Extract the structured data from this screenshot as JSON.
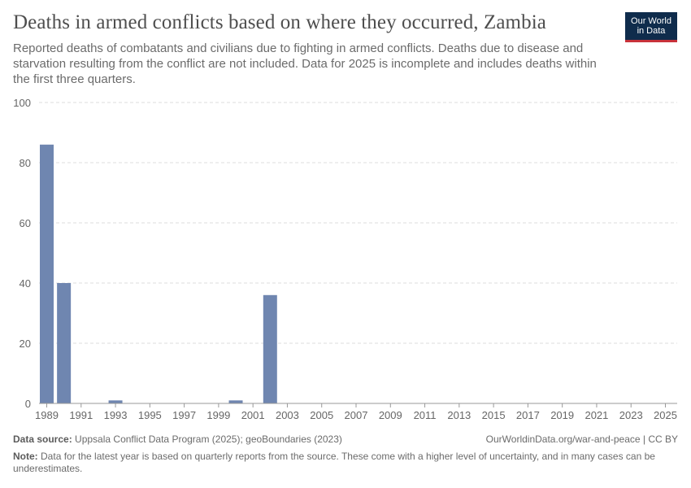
{
  "header": {
    "title": "Deaths in armed conflicts based on where they occurred, Zambia",
    "subtitle": "Reported deaths of combatants and civilians due to fighting in armed conflicts. Deaths due to disease and starvation resulting from the conflict are not included. Data for 2025 is incomplete and includes deaths within the first three quarters."
  },
  "logo": {
    "line1": "Our World",
    "line2": "in Data"
  },
  "colors": {
    "bar": "#6f86b0",
    "grid": "#dddddd",
    "axis": "#999999",
    "text": "#5b5b5b"
  },
  "chart_data": {
    "type": "bar",
    "title": "Deaths in armed conflicts based on where they occurred, Zambia",
    "xlabel": "",
    "ylabel": "",
    "ylim": [
      0,
      100
    ],
    "yticks": [
      0,
      20,
      40,
      60,
      80,
      100
    ],
    "xticks": [
      1989,
      1991,
      1993,
      1995,
      1997,
      1999,
      2001,
      2003,
      2005,
      2007,
      2009,
      2011,
      2013,
      2015,
      2017,
      2019,
      2021,
      2023,
      2025
    ],
    "grid": true,
    "categories": [
      1989,
      1990,
      1991,
      1992,
      1993,
      1994,
      1995,
      1996,
      1997,
      1998,
      1999,
      2000,
      2001,
      2002,
      2003,
      2004,
      2005,
      2006,
      2007,
      2008,
      2009,
      2010,
      2011,
      2012,
      2013,
      2014,
      2015,
      2016,
      2017,
      2018,
      2019,
      2020,
      2021,
      2022,
      2023,
      2024,
      2025
    ],
    "values": [
      86,
      40,
      0,
      0,
      1,
      0,
      0,
      0,
      0,
      0,
      0,
      1,
      0,
      36,
      0,
      0,
      0,
      0,
      0,
      0,
      0,
      0,
      0,
      0,
      0,
      0,
      0,
      0,
      0,
      0,
      0,
      0,
      0,
      0,
      0,
      0,
      0
    ]
  },
  "footer": {
    "source_label": "Data source:",
    "source_text": "Uppsala Conflict Data Program (2025); geoBoundaries (2023)",
    "url": "OurWorldinData.org/war-and-peace | CC BY",
    "note_label": "Note:",
    "note_text": "Data for the latest year is based on quarterly reports from the source. These come with a higher level of uncertainty, and in many cases can be underestimates."
  }
}
